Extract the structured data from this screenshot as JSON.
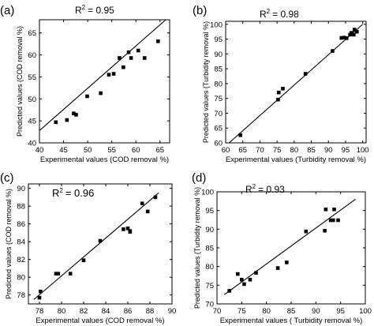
{
  "chart_data": [
    {
      "type": "scatter",
      "panel_label": "(a)",
      "r2_prefix": "R",
      "r2_exp": "2",
      "r2_value": "= 0.95",
      "xlabel": "Experimental values (COD removal %)",
      "ylabel": "Predicted values (COD removal %)",
      "xlim": [
        40,
        67
      ],
      "ylim": [
        40,
        68
      ],
      "xticks": [
        40,
        45,
        50,
        55,
        60,
        65
      ],
      "yticks": [
        40,
        45,
        50,
        55,
        60,
        65
      ],
      "fit_line": [
        [
          40,
          42.8
        ],
        [
          66.2,
          68
        ]
      ],
      "x": [
        43.4,
        45.7,
        47.1,
        47.6,
        49.9,
        52.7,
        54.4,
        55.4,
        56.6,
        57.4,
        58.5,
        59.0,
        60.5,
        61.8,
        64.6
      ],
      "y": [
        44.7,
        45.2,
        46.7,
        46.4,
        50.6,
        51.3,
        55.5,
        55.7,
        59.3,
        57.2,
        60.6,
        59.3,
        61.0,
        59.3,
        63.1
      ]
    },
    {
      "type": "scatter",
      "panel_label": "(b)",
      "r2_prefix": "R",
      "r2_exp": "2",
      "r2_value": "= 0.98",
      "xlabel": "Experimental values (Turbidity removal %)",
      "ylabel": "Predicted values (Turbidity removal %)",
      "xlim": [
        60,
        101
      ],
      "ylim": [
        60,
        101
      ],
      "xticks": [
        60,
        65,
        70,
        75,
        80,
        85,
        90,
        95,
        100
      ],
      "yticks": [
        60,
        65,
        70,
        75,
        80,
        85,
        90,
        95,
        100
      ],
      "fit_line": [
        [
          61,
          60
        ],
        [
          100,
          100
        ]
      ],
      "x": [
        64.3,
        75.3,
        75.5,
        76.7,
        83.3,
        91.2,
        93.8,
        94.6,
        95.3,
        96.3,
        96.7,
        97.4,
        97.6,
        98.3
      ],
      "y": [
        62.6,
        74.6,
        77.0,
        78.3,
        83.3,
        91.0,
        95.4,
        95.5,
        95.3,
        96.5,
        97.1,
        96.5,
        98.2,
        97.5
      ]
    },
    {
      "type": "scatter",
      "panel_label": "(c)",
      "r2_prefix": "R",
      "r2_exp": "2",
      "r2_value": "= 0.96",
      "xlabel": "Experimental values (COD removal %)",
      "ylabel": "Predicted values (COD removal %)",
      "xlim": [
        77,
        90
      ],
      "ylim": [
        77,
        90.5
      ],
      "xticks": [
        78,
        80,
        82,
        84,
        86,
        88,
        90
      ],
      "yticks": [
        78,
        80,
        82,
        84,
        86,
        88,
        90
      ],
      "fit_line": [
        [
          77.5,
          77.5
        ],
        [
          88.8,
          89.5
        ]
      ],
      "x": [
        78.0,
        78.1,
        79.5,
        79.7,
        80.8,
        82.0,
        83.5,
        85.6,
        86.0,
        86.2,
        86.2,
        87.3,
        87.8,
        88.5
      ],
      "y": [
        77.7,
        78.4,
        80.4,
        80.4,
        80.4,
        81.9,
        84.1,
        85.4,
        85.5,
        85.2,
        85.1,
        88.3,
        87.4,
        89.0
      ]
    },
    {
      "type": "scatter",
      "panel_label": "(d)",
      "r2_prefix": "R",
      "r2_exp": "2",
      "r2_value": "= 0.93",
      "xlabel": "Experimental values ( Turbidity removal %)",
      "ylabel": "Predicted values (Turbidity removal %)",
      "xlim": [
        70,
        100
      ],
      "ylim": [
        70,
        100
      ],
      "xticks": [
        70,
        75,
        80,
        85,
        90,
        95,
        100
      ],
      "yticks": [
        70,
        75,
        80,
        85,
        90,
        95,
        100
      ],
      "fit_line": [
        [
          71.5,
          72.5
        ],
        [
          98,
          98
        ]
      ],
      "x": [
        72.5,
        74.2,
        75.0,
        75.5,
        76.7,
        77.9,
        82.3,
        84.1,
        88.0,
        91.8,
        92.0,
        93.0,
        93.5,
        93.7,
        94.5
      ],
      "y": [
        73.5,
        78.0,
        76.5,
        75.3,
        76.5,
        78.3,
        79.6,
        81.1,
        89.4,
        89.6,
        95.3,
        92.4,
        92.4,
        95.3,
        92.4
      ]
    }
  ]
}
